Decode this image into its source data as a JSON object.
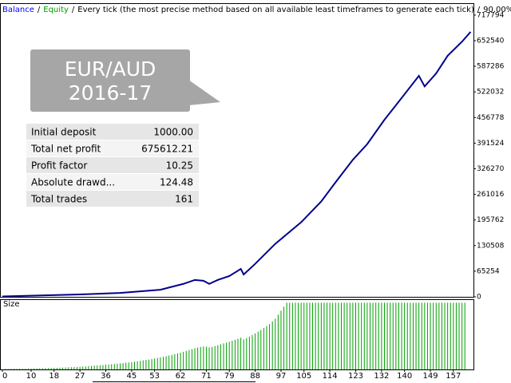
{
  "header": {
    "items": [
      "Balance",
      "Equity",
      "Every tick (the most precise method based on all available least timeframes to generate each tick)",
      "90.00%"
    ],
    "colors": [
      "#0000ff",
      "#00a000",
      "#000000",
      "#000000"
    ],
    "separator": "/"
  },
  "callout": {
    "lines": [
      "EUR/AUD",
      "2016-17"
    ]
  },
  "stats": {
    "rows": [
      [
        "Initial deposit",
        "1000.00"
      ],
      [
        "Total net profit",
        "675612.21"
      ],
      [
        "Profit factor",
        "10.25"
      ],
      [
        "Absolute drawd...",
        "124.48"
      ],
      [
        "Total trades",
        "161"
      ]
    ]
  },
  "chart_data": [
    {
      "type": "line",
      "x": [
        0,
        27,
        41,
        55,
        63,
        67,
        70,
        72,
        75,
        79,
        83,
        84,
        88,
        95,
        104,
        111,
        116,
        122,
        127,
        133,
        140,
        145,
        147,
        151,
        155,
        160,
        163
      ],
      "series": [
        {
          "color": "#00008b",
          "values": [
            1000,
            6000,
            10000,
            18000,
            33000,
            43000,
            41000,
            33000,
            43000,
            53000,
            71000,
            57000,
            84000,
            135000,
            190000,
            243000,
            292000,
            349000,
            389000,
            451000,
            516000,
            563000,
            536000,
            569000,
            614000,
            650000,
            675000
          ]
        }
      ],
      "xlim": [
        0,
        164
      ],
      "ylim": [
        0,
        746000
      ],
      "yticks": [
        0,
        65254,
        130508,
        195762,
        261016,
        326270,
        391524,
        456778,
        522032,
        587286,
        652540,
        717794
      ]
    },
    {
      "type": "bar",
      "label": "Size",
      "color": "#00a000",
      "x": [
        1,
        2,
        3,
        4,
        5,
        6,
        7,
        8,
        9,
        10,
        11,
        12,
        13,
        14,
        15,
        16,
        17,
        18,
        19,
        20,
        21,
        22,
        23,
        24,
        25,
        26,
        27,
        28,
        29,
        30,
        31,
        32,
        33,
        34,
        35,
        36,
        37,
        38,
        39,
        40,
        41,
        42,
        43,
        44,
        45,
        46,
        47,
        48,
        49,
        50,
        51,
        52,
        53,
        54,
        55,
        56,
        57,
        58,
        59,
        60,
        61,
        62,
        63,
        64,
        65,
        66,
        67,
        68,
        69,
        70,
        71,
        72,
        73,
        74,
        75,
        76,
        77,
        78,
        79,
        80,
        81,
        82,
        83,
        84,
        85,
        86,
        87,
        88,
        89,
        90,
        91,
        92,
        93,
        94,
        95,
        96,
        97,
        98,
        99,
        100,
        101,
        102,
        103,
        104,
        105,
        106,
        107,
        108,
        109,
        110,
        111,
        112,
        113,
        114,
        115,
        116,
        117,
        118,
        119,
        120,
        121,
        122,
        123,
        124,
        125,
        126,
        127,
        128,
        129,
        130,
        131,
        132,
        133,
        134,
        135,
        136,
        137,
        138,
        139,
        140,
        141,
        142,
        143,
        144,
        145,
        146,
        147,
        148,
        149,
        150,
        151,
        152,
        153,
        154,
        155,
        156,
        157,
        158,
        159,
        160,
        161
      ],
      "values": [
        0.4,
        0.4,
        0.5,
        0.5,
        0.5,
        0.6,
        0.6,
        0.6,
        0.7,
        0.7,
        0.8,
        0.8,
        0.9,
        0.9,
        1.0,
        1.0,
        1.1,
        1.2,
        1.2,
        1.3,
        1.4,
        1.5,
        1.6,
        1.7,
        1.8,
        1.9,
        2.0,
        2.2,
        2.3,
        2.5,
        2.6,
        2.8,
        3.0,
        3.1,
        3.3,
        3.5,
        3.7,
        3.9,
        4.1,
        4.3,
        4.5,
        4.7,
        5.0,
        5.2,
        5.5,
        5.8,
        6.1,
        6.4,
        6.8,
        7.1,
        7.4,
        7.8,
        8.2,
        8.6,
        9.0,
        9.4,
        9.9,
        10.4,
        10.9,
        11.4,
        12.0,
        12.6,
        13.2,
        13.9,
        14.6,
        15.2,
        15.9,
        16.4,
        16.8,
        17.2,
        17.0,
        16.5,
        16.8,
        17.5,
        18.2,
        18.9,
        19.5,
        20.1,
        20.8,
        21.5,
        22.2,
        23.0,
        23.8,
        22.5,
        23.5,
        24.6,
        25.8,
        27.0,
        28.3,
        29.6,
        31.0,
        32.5,
        34.0,
        36.0,
        38.0,
        41.0,
        44.0,
        47.0,
        50,
        50,
        50,
        50,
        50,
        50,
        50,
        50,
        50,
        50,
        50,
        50,
        50,
        50,
        50,
        50,
        50,
        50,
        50,
        50,
        50,
        50,
        50,
        50,
        50,
        50,
        50,
        50,
        50,
        50,
        50,
        50,
        50,
        50,
        50,
        50,
        50,
        50,
        50,
        50,
        50,
        50,
        50,
        50,
        50,
        50,
        50,
        50,
        50,
        50,
        50,
        50,
        50,
        50,
        50,
        50,
        50,
        50,
        50,
        50,
        50,
        50,
        50
      ],
      "xlim": [
        0,
        164
      ],
      "ylim": [
        0,
        52
      ],
      "xticks": [
        0,
        10,
        18,
        27,
        36,
        45,
        53,
        62,
        71,
        79,
        88,
        97,
        105,
        114,
        123,
        132,
        140,
        149,
        157
      ]
    }
  ]
}
